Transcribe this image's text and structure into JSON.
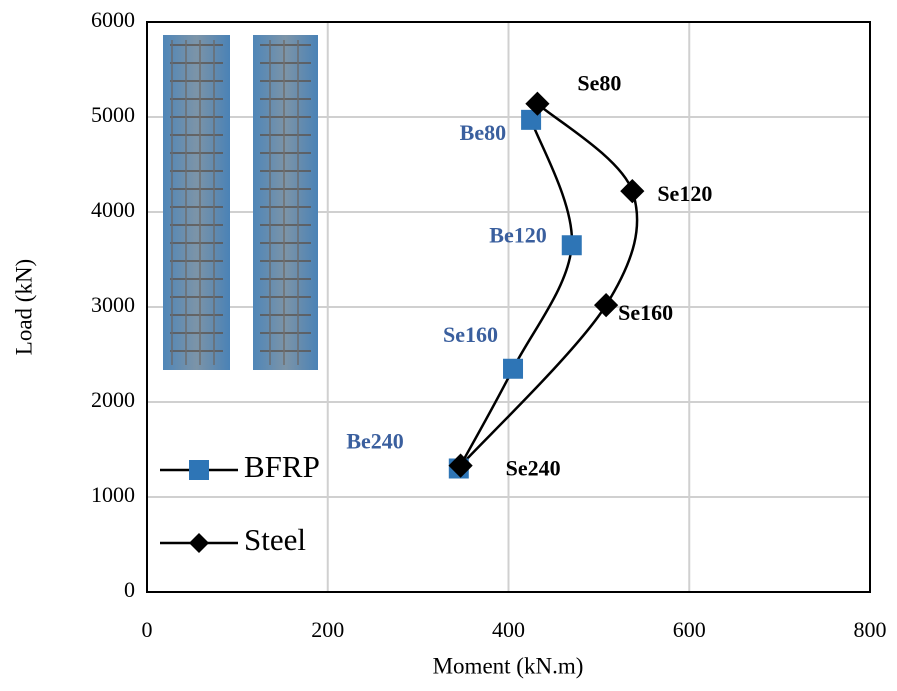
{
  "chart_data": {
    "type": "scatter",
    "x_label": "Moment (kN.m)",
    "y_label": "Load (kN)",
    "xlim": [
      0,
      800
    ],
    "ylim": [
      0,
      6000
    ],
    "xticks": [
      0,
      200,
      400,
      600,
      800
    ],
    "yticks": [
      0,
      1000,
      2000,
      3000,
      4000,
      5000,
      6000
    ],
    "grid": true,
    "legend": "lower left",
    "series": [
      {
        "name": "BFRP",
        "color": "#2e75b6",
        "line_color": "#000000",
        "marker": "square",
        "label_color": "#3a5f9e",
        "x": [
          345,
          405,
          470,
          425
        ],
        "values": [
          1300,
          2350,
          3650,
          4970
        ],
        "point_labels": [
          "Be240",
          "Se160",
          "Be120",
          "Be80"
        ]
      },
      {
        "name": "Steel",
        "color": "#000000",
        "line_color": "#000000",
        "marker": "diamond",
        "label_color": "#000000",
        "x": [
          347,
          508,
          537,
          432
        ],
        "values": [
          1330,
          3020,
          4220,
          5140
        ],
        "point_labels": [
          "Se240",
          "Se160",
          "Se120",
          "Se80"
        ]
      }
    ]
  }
}
